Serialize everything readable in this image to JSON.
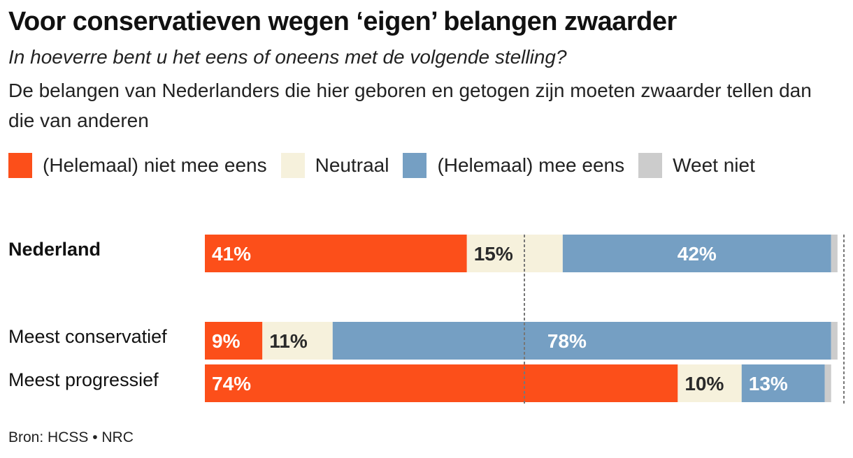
{
  "chart_data": {
    "type": "bar",
    "orientation": "horizontal-stacked",
    "title": "Voor conservatieven wegen ‘eigen’ belangen zwaarder",
    "subtitle": "In hoeverre bent u het eens of oneens met de volgende stelling?",
    "statement": "De belangen van Nederlanders die hier geboren en getogen zijn moeten zwaarder tellen dan die van anderen",
    "xlim": [
      0,
      100
    ],
    "reference_lines": [
      50,
      100
    ],
    "legend_position": "top-left",
    "categories": [
      "Nederland",
      "Meest conservatief",
      "Meest progressief"
    ],
    "category_bold": [
      true,
      false,
      false
    ],
    "series": [
      {
        "name": "(Helemaal) niet mee eens",
        "color": "#fc4f1a",
        "label_color": "#ffffff",
        "values": [
          41,
          9,
          74
        ]
      },
      {
        "name": "Neutraal",
        "color": "#f6f1dc",
        "label_color": "#2a2a2a",
        "values": [
          15,
          11,
          10
        ]
      },
      {
        "name": "(Helemaal) mee eens",
        "color": "#759fc3",
        "label_color": "#ffffff",
        "values": [
          42,
          78,
          13
        ]
      },
      {
        "name": "Weet niet",
        "color": "#cccccc",
        "label_color": "#2a2a2a",
        "values": [
          1,
          1,
          1
        ]
      }
    ],
    "data_labels": [
      [
        "41%",
        "15%",
        "42%",
        ""
      ],
      [
        "9%",
        "11%",
        "78%",
        ""
      ],
      [
        "74%",
        "10%",
        "13%",
        ""
      ]
    ]
  },
  "source": "Bron: HCSS • NRC"
}
